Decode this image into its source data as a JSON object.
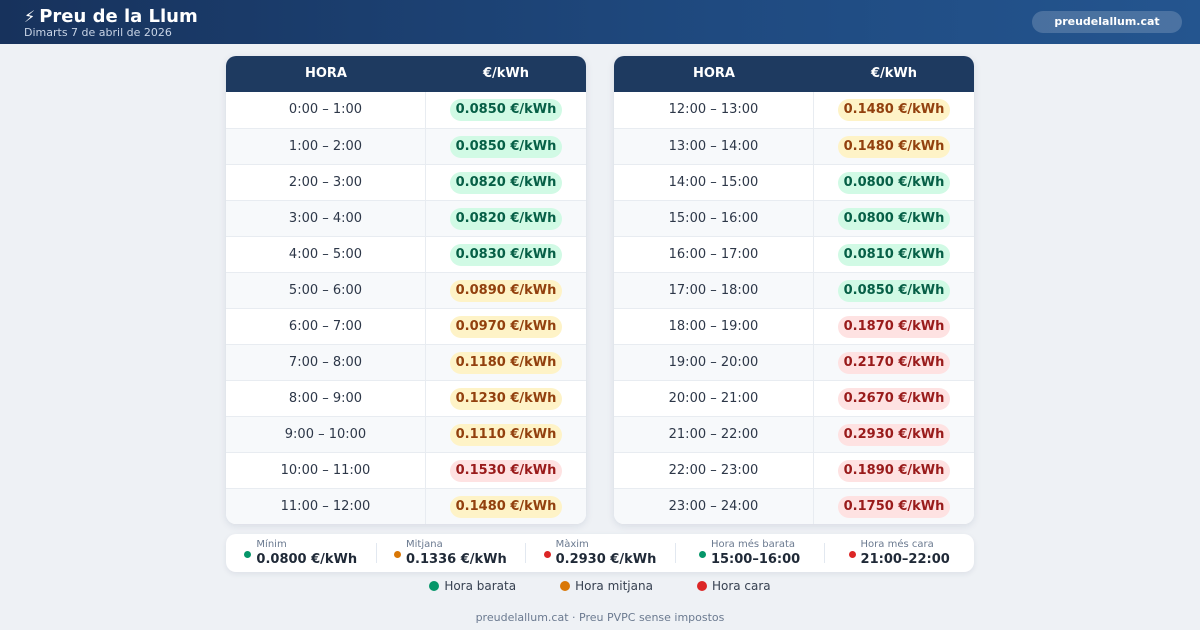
{
  "header": {
    "title": "Preu de la Llum",
    "date": "Dimarts 7 de abril de 2026",
    "site": "preudelallum.cat",
    "icon": "lightning-bolt-icon",
    "icon_glyph": "⚡"
  },
  "table": {
    "col_hour": "HORA",
    "col_price": "€/kWh"
  },
  "left_rows": [
    {
      "hour": "0:00 – 1:00",
      "price": "0.0850 €/kWh",
      "level": "cheap"
    },
    {
      "hour": "1:00 – 2:00",
      "price": "0.0850 €/kWh",
      "level": "cheap"
    },
    {
      "hour": "2:00 – 3:00",
      "price": "0.0820 €/kWh",
      "level": "cheap"
    },
    {
      "hour": "3:00 – 4:00",
      "price": "0.0820 €/kWh",
      "level": "cheap"
    },
    {
      "hour": "4:00 – 5:00",
      "price": "0.0830 €/kWh",
      "level": "cheap"
    },
    {
      "hour": "5:00 – 6:00",
      "price": "0.0890 €/kWh",
      "level": "mid"
    },
    {
      "hour": "6:00 – 7:00",
      "price": "0.0970 €/kWh",
      "level": "mid"
    },
    {
      "hour": "7:00 – 8:00",
      "price": "0.1180 €/kWh",
      "level": "mid"
    },
    {
      "hour": "8:00 – 9:00",
      "price": "0.1230 €/kWh",
      "level": "mid"
    },
    {
      "hour": "9:00 – 10:00",
      "price": "0.1110 €/kWh",
      "level": "mid"
    },
    {
      "hour": "10:00 – 11:00",
      "price": "0.1530 €/kWh",
      "level": "high"
    },
    {
      "hour": "11:00 – 12:00",
      "price": "0.1480 €/kWh",
      "level": "mid"
    }
  ],
  "right_rows": [
    {
      "hour": "12:00 – 13:00",
      "price": "0.1480 €/kWh",
      "level": "mid"
    },
    {
      "hour": "13:00 – 14:00",
      "price": "0.1480 €/kWh",
      "level": "mid"
    },
    {
      "hour": "14:00 – 15:00",
      "price": "0.0800 €/kWh",
      "level": "cheap"
    },
    {
      "hour": "15:00 – 16:00",
      "price": "0.0800 €/kWh",
      "level": "cheap"
    },
    {
      "hour": "16:00 – 17:00",
      "price": "0.0810 €/kWh",
      "level": "cheap"
    },
    {
      "hour": "17:00 – 18:00",
      "price": "0.0850 €/kWh",
      "level": "cheap"
    },
    {
      "hour": "18:00 – 19:00",
      "price": "0.1870 €/kWh",
      "level": "high"
    },
    {
      "hour": "19:00 – 20:00",
      "price": "0.2170 €/kWh",
      "level": "high"
    },
    {
      "hour": "20:00 – 21:00",
      "price": "0.2670 €/kWh",
      "level": "high"
    },
    {
      "hour": "21:00 – 22:00",
      "price": "0.2930 €/kWh",
      "level": "high"
    },
    {
      "hour": "22:00 – 23:00",
      "price": "0.1890 €/kWh",
      "level": "high"
    },
    {
      "hour": "23:00 – 24:00",
      "price": "0.1750 €/kWh",
      "level": "high"
    }
  ],
  "stats": [
    {
      "label": "Mínim",
      "value": "0.0800 €/kWh",
      "color": "#059669"
    },
    {
      "label": "Mitjana",
      "value": "0.1336 €/kWh",
      "color": "#d97706"
    },
    {
      "label": "Màxim",
      "value": "0.2930 €/kWh",
      "color": "#dc2626"
    },
    {
      "label": "Hora més barata",
      "value": "15:00–16:00",
      "color": "#059669"
    },
    {
      "label": "Hora més cara",
      "value": "21:00–22:00",
      "color": "#dc2626"
    }
  ],
  "legend": [
    {
      "label": "Hora barata",
      "color": "#059669"
    },
    {
      "label": "Hora mitjana",
      "color": "#d97706"
    },
    {
      "label": "Hora cara",
      "color": "#dc2626"
    }
  ],
  "footer": "preudelallum.cat · Preu PVPC sense impostos"
}
